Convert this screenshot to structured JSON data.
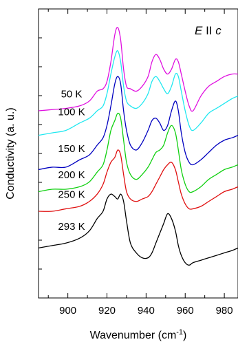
{
  "chart_data": {
    "type": "line",
    "annotation": {
      "E": "E",
      "sep": " II ",
      "c": "c"
    },
    "xlabel": {
      "text": "Wavenumber (cm",
      "sup": "-1",
      "tail": ")"
    },
    "ylabel": "Conductivity (a. u.)",
    "xlim": [
      885,
      987
    ],
    "x_ticks": [
      900,
      920,
      940,
      960,
      980
    ],
    "x_minor_ticks": [
      890,
      910,
      930,
      950,
      970
    ],
    "y_ticks_count": 10,
    "series": [
      {
        "name": "50 K",
        "color": "#e010e0",
        "x": [
          885,
          892,
          899,
          906,
          911,
          915,
          918,
          920,
          922,
          924,
          925.5,
          927,
          928.5,
          930,
          932,
          935,
          938,
          941,
          943,
          945,
          947,
          949,
          951,
          953,
          955,
          956.5,
          958,
          960,
          962,
          964,
          968,
          972,
          976,
          980,
          984,
          987
        ],
        "y": [
          0.66,
          0.665,
          0.67,
          0.68,
          0.7,
          0.74,
          0.75,
          0.78,
          0.86,
          0.97,
          1.0,
          0.95,
          0.83,
          0.76,
          0.75,
          0.74,
          0.76,
          0.8,
          0.86,
          0.89,
          0.87,
          0.83,
          0.81,
          0.83,
          0.87,
          0.86,
          0.81,
          0.74,
          0.68,
          0.66,
          0.72,
          0.76,
          0.78,
          0.8,
          0.81,
          0.81
        ]
      },
      {
        "name": "100 K",
        "color": "#20e8f0",
        "x": [
          885,
          892,
          899,
          906,
          911,
          915,
          918,
          920,
          922,
          924,
          925.5,
          927,
          928.5,
          930,
          932,
          935,
          938,
          941,
          943,
          945,
          947,
          949,
          951,
          953,
          955,
          956.5,
          958,
          960,
          962,
          964,
          968,
          972,
          976,
          980,
          984,
          987
        ],
        "y": [
          0.56,
          0.57,
          0.58,
          0.61,
          0.63,
          0.66,
          0.68,
          0.73,
          0.81,
          0.88,
          0.905,
          0.86,
          0.76,
          0.7,
          0.68,
          0.67,
          0.69,
          0.73,
          0.78,
          0.8,
          0.78,
          0.75,
          0.73,
          0.76,
          0.81,
          0.8,
          0.74,
          0.66,
          0.6,
          0.58,
          0.61,
          0.65,
          0.67,
          0.69,
          0.71,
          0.72
        ]
      },
      {
        "name": "150 K",
        "color": "#0000c0",
        "x": [
          885,
          892,
          899,
          906,
          911,
          915,
          918,
          920,
          922,
          924,
          925.5,
          927,
          928.5,
          930,
          932,
          935,
          938,
          941,
          943,
          945,
          947,
          949,
          951,
          953,
          955,
          956.5,
          958,
          960,
          962,
          964,
          968,
          972,
          976,
          980,
          984,
          987
        ],
        "y": [
          0.42,
          0.43,
          0.43,
          0.46,
          0.48,
          0.52,
          0.55,
          0.6,
          0.68,
          0.77,
          0.8,
          0.77,
          0.66,
          0.58,
          0.52,
          0.5,
          0.53,
          0.58,
          0.62,
          0.63,
          0.61,
          0.58,
          0.6,
          0.66,
          0.7,
          0.66,
          0.57,
          0.49,
          0.45,
          0.44,
          0.46,
          0.49,
          0.52,
          0.54,
          0.55,
          0.56
        ]
      },
      {
        "name": "200 K",
        "color": "#10d010",
        "x": [
          885,
          892,
          899,
          906,
          911,
          915,
          918,
          920,
          922,
          924,
          925.5,
          927,
          928.5,
          930,
          932,
          935,
          938,
          941,
          943,
          945,
          947,
          949,
          951,
          953,
          955,
          956.5,
          958,
          960,
          962,
          964,
          968,
          972,
          976,
          980,
          984,
          987
        ],
        "y": [
          0.33,
          0.34,
          0.34,
          0.35,
          0.37,
          0.41,
          0.44,
          0.5,
          0.58,
          0.62,
          0.65,
          0.63,
          0.54,
          0.45,
          0.4,
          0.38,
          0.4,
          0.43,
          0.46,
          0.49,
          0.5,
          0.52,
          0.57,
          0.6,
          0.57,
          0.5,
          0.42,
          0.36,
          0.33,
          0.33,
          0.35,
          0.38,
          0.4,
          0.42,
          0.43,
          0.44
        ]
      },
      {
        "name": "250 K",
        "color": "#e01010",
        "x": [
          885,
          892,
          899,
          906,
          911,
          915,
          918,
          920,
          922,
          924,
          925.5,
          927,
          928.5,
          930,
          932,
          935,
          938,
          941,
          943,
          945,
          947,
          949,
          951,
          953,
          955,
          956.5,
          958,
          960,
          962,
          964,
          968,
          972,
          976,
          980,
          984,
          987
        ],
        "y": [
          0.25,
          0.25,
          0.26,
          0.27,
          0.29,
          0.32,
          0.36,
          0.41,
          0.45,
          0.47,
          0.5,
          0.48,
          0.4,
          0.33,
          0.3,
          0.29,
          0.3,
          0.31,
          0.33,
          0.36,
          0.39,
          0.42,
          0.44,
          0.45,
          0.42,
          0.37,
          0.32,
          0.28,
          0.26,
          0.26,
          0.27,
          0.29,
          0.31,
          0.33,
          0.34,
          0.35
        ]
      },
      {
        "name": "293 K",
        "color": "#000000",
        "x": [
          885,
          892,
          899,
          906,
          911,
          915,
          918,
          920,
          922,
          924,
          925.5,
          927,
          928.5,
          930,
          932,
          935,
          938,
          941,
          943,
          945,
          947,
          949,
          951,
          953,
          955,
          956.5,
          958,
          960,
          962,
          964,
          968,
          972,
          976,
          980,
          984,
          987
        ],
        "y": [
          0.1,
          0.11,
          0.12,
          0.14,
          0.17,
          0.22,
          0.25,
          0.3,
          0.32,
          0.31,
          0.3,
          0.32,
          0.29,
          0.21,
          0.12,
          0.08,
          0.06,
          0.06,
          0.08,
          0.12,
          0.16,
          0.2,
          0.24,
          0.22,
          0.17,
          0.11,
          0.07,
          0.04,
          0.03,
          0.04,
          0.05,
          0.06,
          0.07,
          0.08,
          0.09,
          0.1
        ]
      }
    ]
  }
}
